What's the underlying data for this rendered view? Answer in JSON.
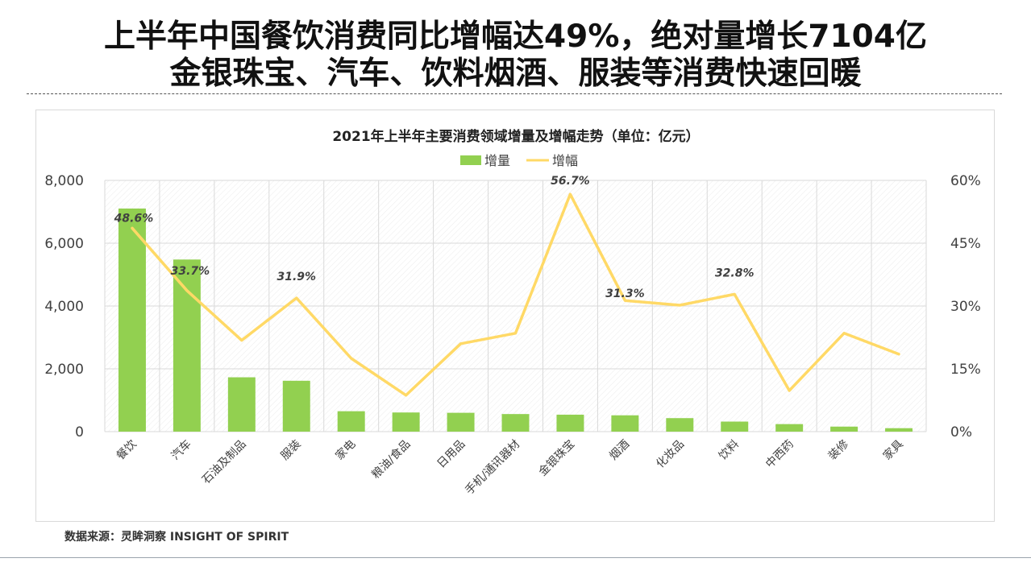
{
  "headline": {
    "line1": "上半年中国餐饮消费同比增幅达49%，绝对量增长7104亿",
    "line2": "金银珠宝、汽车、饮料烟酒、服装等消费快速回暖"
  },
  "source": "数据来源：灵眸洞察 INSIGHT OF SPIRIT",
  "colors": {
    "bar": "#92d050",
    "line": "#ffd966",
    "grid": "#d9d9d9",
    "label": "#404040"
  },
  "chart_data": {
    "type": "bar+line",
    "title": "2021年上半年主要消费领域增量及增幅走势（单位：亿元）",
    "legend": {
      "position": "top-center",
      "entries": [
        "增量",
        "增幅"
      ]
    },
    "categories": [
      "餐饮",
      "汽车",
      "石油及制品",
      "服装",
      "家电",
      "粮油/食品",
      "日用品",
      "手机/通讯器材",
      "金银珠宝",
      "烟酒",
      "化妆品",
      "饮料",
      "中西药",
      "装修",
      "家具"
    ],
    "series": [
      {
        "name": "增量",
        "type": "bar",
        "axis": "left",
        "values": [
          7104,
          5480,
          1730,
          1620,
          650,
          610,
          600,
          560,
          540,
          520,
          430,
          320,
          240,
          160,
          110
        ]
      },
      {
        "name": "增幅",
        "type": "line",
        "axis": "right",
        "values": [
          48.6,
          33.7,
          21.8,
          31.9,
          17.5,
          8.7,
          21.0,
          23.5,
          56.7,
          31.3,
          30.2,
          32.8,
          9.8,
          23.5,
          18.5
        ],
        "labels": [
          "48.6%",
          "33.7%",
          "",
          "31.9%",
          "",
          "",
          "",
          "",
          "56.7%",
          "31.3%",
          "",
          "32.8%",
          "",
          "",
          ""
        ]
      }
    ],
    "left_axis": {
      "ylim": [
        0,
        8000
      ],
      "ticks": [
        "0",
        "2,000",
        "4,000",
        "6,000",
        "8,000"
      ],
      "tick_values": [
        0,
        2000,
        4000,
        6000,
        8000
      ]
    },
    "right_axis": {
      "ylim": [
        0,
        60
      ],
      "ticks": [
        "0%",
        "15%",
        "30%",
        "45%",
        "60%"
      ],
      "tick_values": [
        0,
        15,
        30,
        45,
        60
      ]
    },
    "grid": true
  }
}
